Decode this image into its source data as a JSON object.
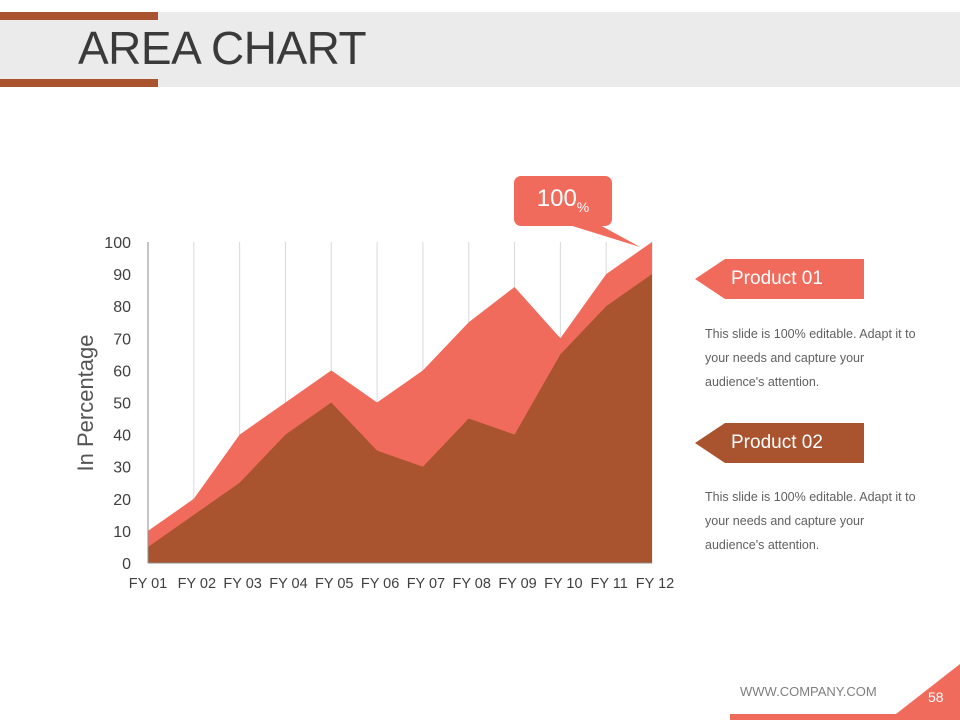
{
  "page": {
    "title": "AREA CHART"
  },
  "callout": {
    "value": "100",
    "unit": "%"
  },
  "legend": [
    {
      "label": "Product 01",
      "description": "This slide is 100% editable. Adapt it to your needs and capture your audience's attention."
    },
    {
      "label": "Product 02",
      "description": "This slide is 100% editable. Adapt it to your needs and capture your audience's attention."
    }
  ],
  "footer": {
    "url": "WWW.COMPANY.COM",
    "page_number": "58"
  },
  "colors": {
    "product_01": "#f06b5c",
    "product_02": "#a9532f",
    "grid": "#d9d9d9"
  },
  "chart_data": {
    "type": "area",
    "categories": [
      "FY 01",
      "FY 02",
      "FY 03",
      "FY 04",
      "FY 05",
      "FY 06",
      "FY 07",
      "FY 08",
      "FY 09",
      "FY 10",
      "FY 11",
      "FY 12"
    ],
    "series": [
      {
        "name": "Product 01",
        "values": [
          10,
          20,
          40,
          50,
          60,
          50,
          60,
          75,
          86,
          70,
          90,
          100
        ]
      },
      {
        "name": "Product 02",
        "values": [
          5,
          15,
          25,
          40,
          50,
          35,
          30,
          45,
          40,
          65,
          80,
          90
        ]
      }
    ],
    "xlabel": "",
    "ylabel": "In Percentage",
    "ylim": [
      0,
      100
    ],
    "yticks": [
      0,
      10,
      20,
      30,
      40,
      50,
      60,
      70,
      80,
      90,
      100
    ],
    "grid": "vertical",
    "legend_position": "right"
  }
}
